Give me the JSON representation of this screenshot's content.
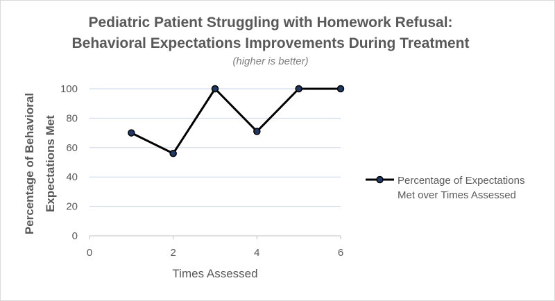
{
  "chart_data": {
    "type": "line",
    "title_line1": "Pediatric Patient Struggling with Homework Refusal:",
    "title_line2": "Behavioral Expectations Improvements During Treatment",
    "subtitle": "(higher is better)",
    "xlabel": "Times Assessed",
    "ylabel_line1": "Percentage of Behavioral",
    "ylabel_line2": "Expectations Met",
    "xlim": [
      0,
      6
    ],
    "ylim": [
      0,
      100
    ],
    "x_ticks": [
      0,
      2,
      4,
      6
    ],
    "y_ticks": [
      0,
      20,
      40,
      60,
      80,
      100
    ],
    "grid": "horizontal",
    "legend_position": "right",
    "series": [
      {
        "name_line1": "Percentage of Expectations",
        "name_line2": "Met over Times Assessed",
        "x": [
          1,
          2,
          3,
          4,
          5,
          6
        ],
        "y": [
          70,
          56,
          100,
          71,
          100,
          100
        ],
        "color": "#000000",
        "marker_fill": "#1f3864"
      }
    ]
  }
}
